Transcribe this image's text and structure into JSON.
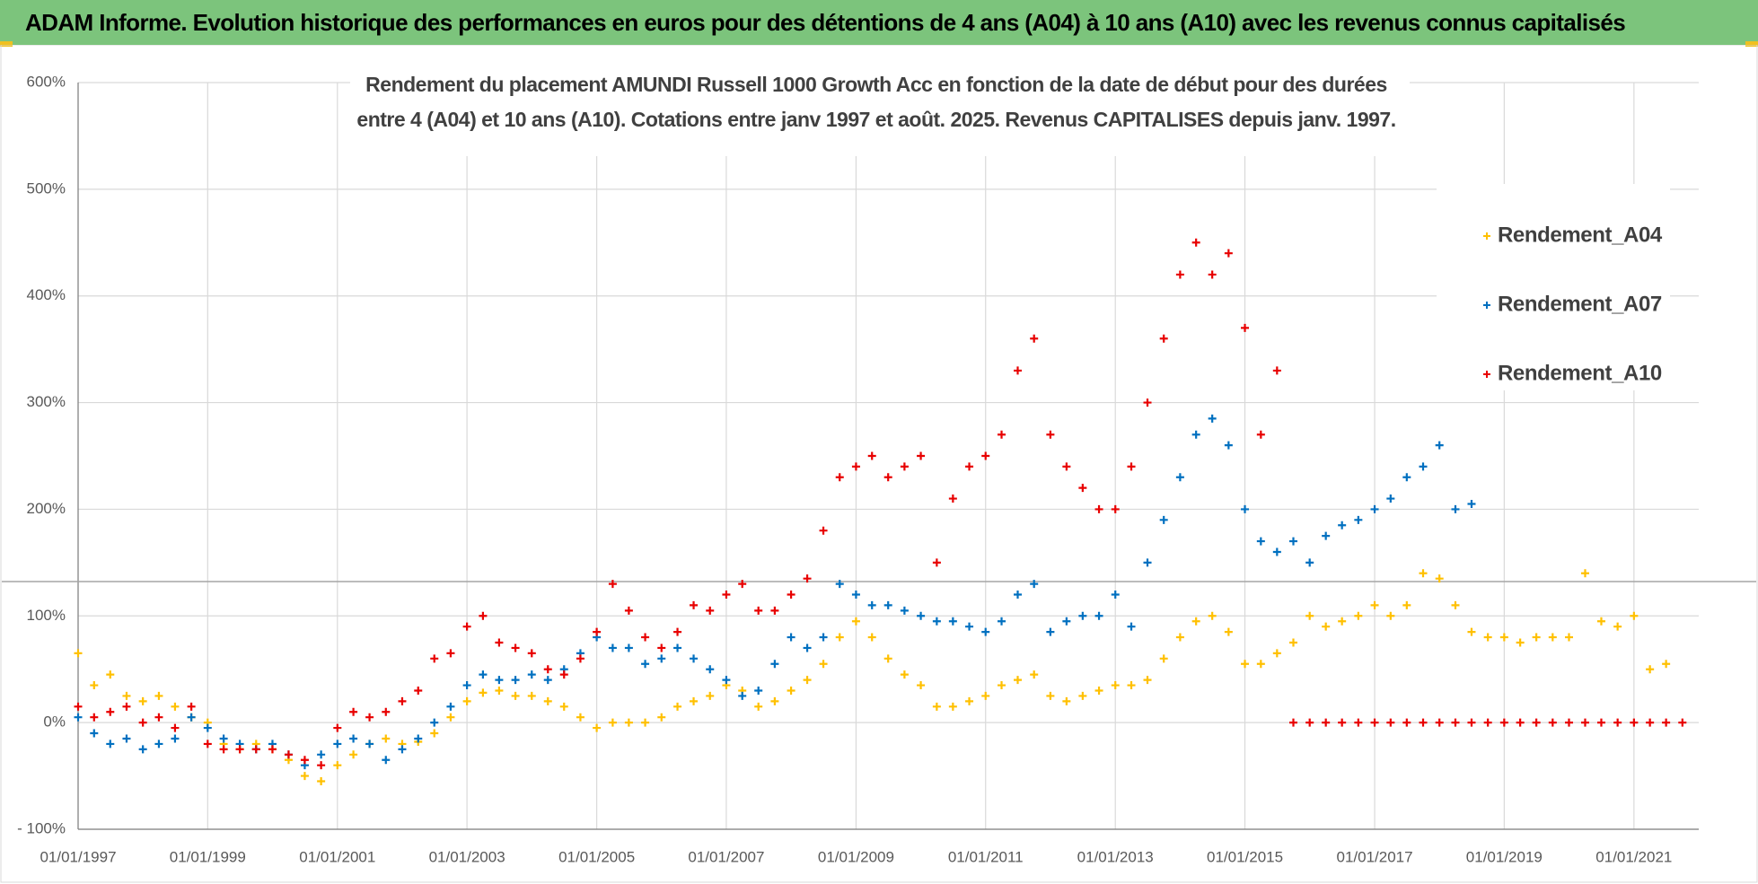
{
  "header": {
    "title": "ADAM Informe. Evolution historique des performances en euros pour des détentions de 4 ans (A04) à 10 ans (A10) avec les revenus connus capitalisés"
  },
  "chart_data": {
    "type": "scatter",
    "title": [
      "Rendement du placement AMUNDI Russell 1000 Growth Acc en fonction de la date de début pour des durées",
      "entre 4 (A04) et 10 ans (A10). Cotations entre janv 1997 et août. 2025. Revenus CAPITALISES depuis janv. 1997."
    ],
    "xlim": [
      "01/01/1997",
      "01/01/2022"
    ],
    "xticks": [
      "01/01/1997",
      "01/01/1999",
      "01/01/2001",
      "01/01/2003",
      "01/01/2005",
      "01/01/2007",
      "01/01/2009",
      "01/01/2011",
      "01/01/2013",
      "01/01/2015",
      "01/01/2017",
      "01/01/2019",
      "01/01/2021"
    ],
    "ylim": [
      -100,
      600
    ],
    "yticks": [
      {
        "value": -100,
        "label": "- 100%"
      },
      {
        "value": 0,
        "label": "0%"
      },
      {
        "value": 100,
        "label": "100%"
      },
      {
        "value": 200,
        "label": "200%"
      },
      {
        "value": 300,
        "label": "300%"
      },
      {
        "value": 400,
        "label": "400%"
      },
      {
        "value": 500,
        "label": "500%"
      },
      {
        "value": 600,
        "label": "600%"
      }
    ],
    "grid": true,
    "legend": "upper right",
    "series": [
      {
        "name": "Rendement_A04",
        "color": "#ffc000",
        "x": [
          "01/01/1997",
          "01/04/1997",
          "01/07/1997",
          "01/10/1997",
          "01/01/1998",
          "01/04/1998",
          "01/07/1998",
          "01/10/1998",
          "01/01/1999",
          "01/04/1999",
          "01/07/1999",
          "01/10/1999",
          "01/01/2000",
          "01/04/2000",
          "01/07/2000",
          "01/10/2000",
          "01/01/2001",
          "01/04/2001",
          "01/07/2001",
          "01/10/2001",
          "01/01/2002",
          "01/04/2002",
          "01/07/2002",
          "01/10/2002",
          "01/01/2003",
          "01/04/2003",
          "01/07/2003",
          "01/10/2003",
          "01/01/2004",
          "01/04/2004",
          "01/07/2004",
          "01/10/2004",
          "01/01/2005",
          "01/04/2005",
          "01/07/2005",
          "01/10/2005",
          "01/01/2006",
          "01/04/2006",
          "01/07/2006",
          "01/10/2006",
          "01/01/2007",
          "01/04/2007",
          "01/07/2007",
          "01/10/2007",
          "01/01/2008",
          "01/04/2008",
          "01/07/2008",
          "01/10/2008",
          "01/01/2009",
          "01/04/2009",
          "01/07/2009",
          "01/10/2009",
          "01/01/2010",
          "01/04/2010",
          "01/07/2010",
          "01/10/2010",
          "01/01/2011",
          "01/04/2011",
          "01/07/2011",
          "01/10/2011",
          "01/01/2012",
          "01/04/2012",
          "01/07/2012",
          "01/10/2012",
          "01/01/2013",
          "01/04/2013",
          "01/07/2013",
          "01/10/2013",
          "01/01/2014",
          "01/04/2014",
          "01/07/2014",
          "01/10/2014",
          "01/01/2015",
          "01/04/2015",
          "01/07/2015",
          "01/10/2015",
          "01/01/2016",
          "01/04/2016",
          "01/07/2016",
          "01/10/2016",
          "01/01/2017",
          "01/04/2017",
          "01/07/2017",
          "01/10/2017",
          "01/01/2018",
          "01/04/2018",
          "01/07/2018",
          "01/10/2018",
          "01/01/2019",
          "01/04/2019",
          "01/07/2019",
          "01/10/2019",
          "01/01/2020",
          "01/04/2020",
          "01/07/2020",
          "01/10/2020",
          "01/01/2021",
          "01/04/2021",
          "01/07/2021"
        ],
        "values": [
          65,
          35,
          45,
          25,
          20,
          25,
          15,
          5,
          0,
          -20,
          -25,
          -20,
          -25,
          -35,
          -50,
          -55,
          -40,
          -30,
          -20,
          -15,
          -20,
          -18,
          -10,
          5,
          20,
          28,
          30,
          25,
          25,
          20,
          15,
          5,
          -5,
          0,
          0,
          0,
          5,
          15,
          20,
          25,
          35,
          30,
          15,
          20,
          30,
          40,
          55,
          80,
          95,
          80,
          60,
          45,
          35,
          15,
          15,
          20,
          25,
          35,
          40,
          45,
          25,
          20,
          25,
          30,
          35,
          35,
          40,
          60,
          80,
          95,
          100,
          85,
          55,
          55,
          65,
          75,
          100,
          90,
          95,
          100,
          110,
          100,
          110,
          140,
          135,
          110,
          85,
          80,
          80,
          75,
          80,
          80,
          80,
          140,
          95,
          90,
          100,
          50,
          55
        ]
      },
      {
        "name": "Rendement_A07",
        "color": "#0070c0",
        "x": [
          "01/01/1997",
          "01/04/1997",
          "01/07/1997",
          "01/10/1997",
          "01/01/1998",
          "01/04/1998",
          "01/07/1998",
          "01/10/1998",
          "01/01/1999",
          "01/04/1999",
          "01/07/1999",
          "01/10/1999",
          "01/01/2000",
          "01/04/2000",
          "01/07/2000",
          "01/10/2000",
          "01/01/2001",
          "01/04/2001",
          "01/07/2001",
          "01/10/2001",
          "01/01/2002",
          "01/04/2002",
          "01/07/2002",
          "01/10/2002",
          "01/01/2003",
          "01/04/2003",
          "01/07/2003",
          "01/10/2003",
          "01/01/2004",
          "01/04/2004",
          "01/07/2004",
          "01/10/2004",
          "01/01/2005",
          "01/04/2005",
          "01/07/2005",
          "01/10/2005",
          "01/01/2006",
          "01/04/2006",
          "01/07/2006",
          "01/10/2006",
          "01/01/2007",
          "01/04/2007",
          "01/07/2007",
          "01/10/2007",
          "01/01/2008",
          "01/04/2008",
          "01/07/2008",
          "01/10/2008",
          "01/01/2009",
          "01/04/2009",
          "01/07/2009",
          "01/10/2009",
          "01/01/2010",
          "01/04/2010",
          "01/07/2010",
          "01/10/2010",
          "01/01/2011",
          "01/04/2011",
          "01/07/2011",
          "01/10/2011",
          "01/01/2012",
          "01/04/2012",
          "01/07/2012",
          "01/10/2012",
          "01/01/2013",
          "01/04/2013",
          "01/07/2013",
          "01/10/2013",
          "01/01/2014",
          "01/04/2014",
          "01/07/2014",
          "01/10/2014",
          "01/01/2015",
          "01/04/2015",
          "01/07/2015",
          "01/10/2015",
          "01/01/2016",
          "01/04/2016",
          "01/07/2016",
          "01/10/2016",
          "01/01/2017",
          "01/04/2017",
          "01/07/2017",
          "01/10/2017",
          "01/01/2018",
          "01/04/2018",
          "01/07/2018"
        ],
        "values": [
          5,
          -10,
          -20,
          -15,
          -25,
          -20,
          -15,
          5,
          -5,
          -15,
          -20,
          -25,
          -20,
          -30,
          -40,
          -30,
          -20,
          -15,
          -20,
          -35,
          -25,
          -15,
          0,
          15,
          35,
          45,
          40,
          40,
          45,
          40,
          50,
          65,
          80,
          70,
          70,
          55,
          60,
          70,
          60,
          50,
          40,
          25,
          30,
          55,
          80,
          70,
          80,
          130,
          120,
          110,
          110,
          105,
          100,
          95,
          95,
          90,
          85,
          95,
          120,
          130,
          85,
          95,
          100,
          100,
          120,
          90,
          150,
          190,
          230,
          270,
          285,
          260,
          200,
          170,
          160,
          170,
          150,
          175,
          185,
          190,
          200,
          210,
          230,
          240,
          260,
          200,
          205
        ]
      },
      {
        "name": "Rendement_A10",
        "color": "#e80000",
        "x": [
          "01/01/1997",
          "01/04/1997",
          "01/07/1997",
          "01/10/1997",
          "01/01/1998",
          "01/04/1998",
          "01/07/1998",
          "01/10/1998",
          "01/01/1999",
          "01/04/1999",
          "01/07/1999",
          "01/10/1999",
          "01/01/2000",
          "01/04/2000",
          "01/07/2000",
          "01/10/2000",
          "01/01/2001",
          "01/04/2001",
          "01/07/2001",
          "01/10/2001",
          "01/01/2002",
          "01/04/2002",
          "01/07/2002",
          "01/10/2002",
          "01/01/2003",
          "01/04/2003",
          "01/07/2003",
          "01/10/2003",
          "01/01/2004",
          "01/04/2004",
          "01/07/2004",
          "01/10/2004",
          "01/01/2005",
          "01/04/2005",
          "01/07/2005",
          "01/10/2005",
          "01/01/2006",
          "01/04/2006",
          "01/07/2006",
          "01/10/2006",
          "01/01/2007",
          "01/04/2007",
          "01/07/2007",
          "01/10/2007",
          "01/01/2008",
          "01/04/2008",
          "01/07/2008",
          "01/10/2008",
          "01/01/2009",
          "01/04/2009",
          "01/07/2009",
          "01/10/2009",
          "01/01/2010",
          "01/04/2010",
          "01/07/2010",
          "01/10/2010",
          "01/01/2011",
          "01/04/2011",
          "01/07/2011",
          "01/10/2011",
          "01/01/2012",
          "01/04/2012",
          "01/07/2012",
          "01/10/2012",
          "01/01/2013",
          "01/04/2013",
          "01/07/2013",
          "01/10/2013",
          "01/01/2014",
          "01/04/2014",
          "01/07/2014",
          "01/10/2014",
          "01/01/2015",
          "01/04/2015",
          "01/07/2015",
          "01/10/2015",
          "01/01/2016",
          "01/04/2016",
          "01/07/2016",
          "01/10/2016",
          "01/01/2017",
          "01/04/2017",
          "01/07/2017",
          "01/10/2017",
          "01/01/2018",
          "01/04/2018",
          "01/07/2018",
          "01/10/2018",
          "01/01/2019",
          "01/04/2019",
          "01/07/2019",
          "01/10/2019",
          "01/01/2020",
          "01/04/2020",
          "01/07/2020",
          "01/10/2020",
          "01/01/2021",
          "01/04/2021",
          "01/07/2021",
          "01/10/2021"
        ],
        "values": [
          15,
          5,
          10,
          15,
          0,
          5,
          -5,
          15,
          -20,
          -25,
          -25,
          -25,
          -25,
          -30,
          -35,
          -40,
          -5,
          10,
          5,
          10,
          20,
          30,
          60,
          65,
          90,
          100,
          75,
          70,
          65,
          50,
          45,
          60,
          85,
          130,
          105,
          80,
          70,
          85,
          110,
          105,
          120,
          130,
          105,
          105,
          120,
          135,
          180,
          230,
          240,
          250,
          230,
          240,
          250,
          150,
          210,
          240,
          250,
          270,
          330,
          360,
          270,
          240,
          220,
          200,
          200,
          240,
          300,
          360,
          420,
          450,
          420,
          440,
          370,
          270,
          330,
          0,
          0,
          0,
          0,
          0,
          0,
          0,
          0,
          0,
          0,
          0,
          0,
          0,
          0,
          0,
          0,
          0,
          0,
          0,
          0,
          0,
          0,
          0,
          0,
          0
        ]
      }
    ]
  }
}
